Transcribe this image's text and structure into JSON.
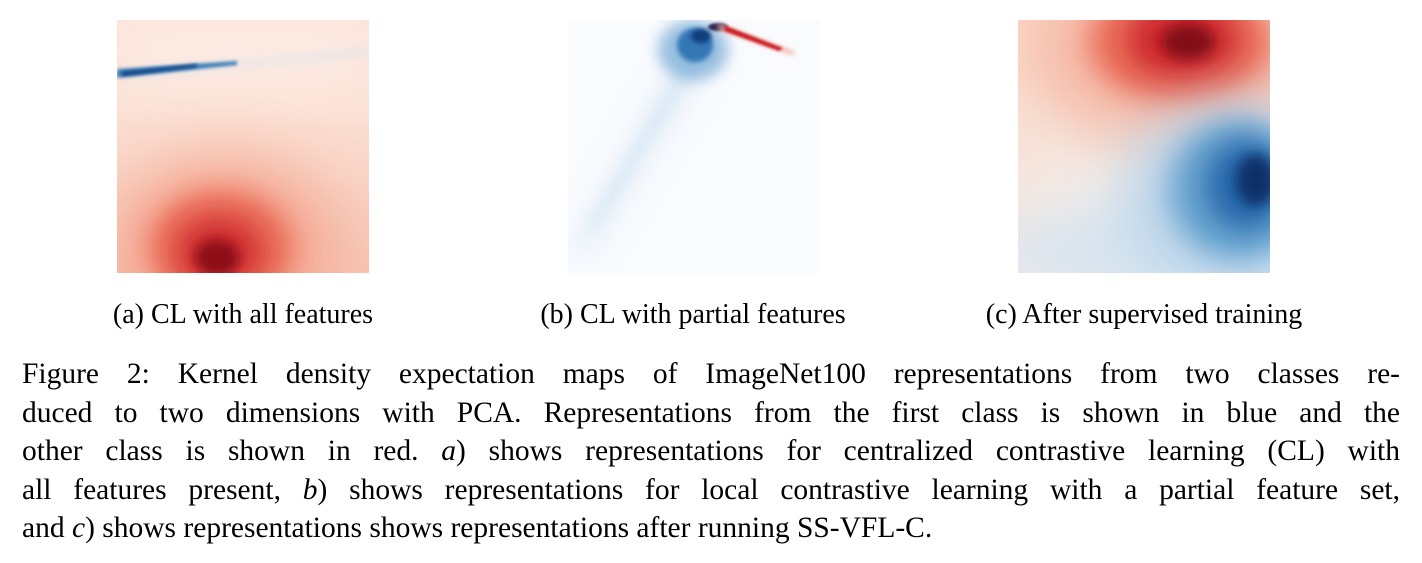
{
  "subfigures": [
    {
      "label": "(a) CL with all features"
    },
    {
      "label": "(b) CL with partial features"
    },
    {
      "label": "(c) After supervised training"
    }
  ],
  "caption": {
    "lines": [
      [
        {
          "text": "Figure 2:  Kernel density expectation maps of ImageNet100 representations from two classes re-"
        }
      ],
      [
        {
          "text": "duced to two dimensions with PCA. Representations from the first class is shown in blue and the"
        }
      ],
      [
        {
          "text": "other class is shown in red. "
        },
        {
          "text": "a",
          "italic": true
        },
        {
          "text": ") shows representations for centralized contrastive learning (CL) with"
        }
      ],
      [
        {
          "text": "all features present, "
        },
        {
          "text": "b",
          "italic": true
        },
        {
          "text": ") shows representations for local contrastive learning with a partial feature set,"
        }
      ],
      [
        {
          "text": "and "
        },
        {
          "text": "c",
          "italic": true
        },
        {
          "text": ") shows representations shows representations after running SS-VFL-C."
        }
      ]
    ]
  },
  "colors": {
    "class_1": "#1f5fa8",
    "class_2": "#c4101f",
    "background": "#ffffff"
  }
}
